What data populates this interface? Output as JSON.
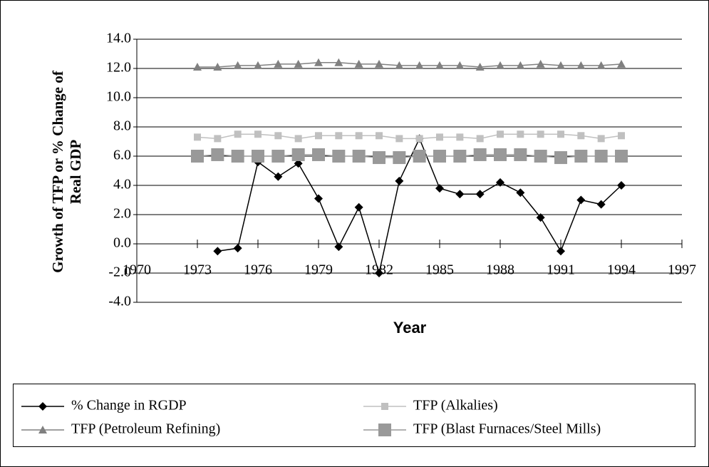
{
  "chart_data": {
    "type": "line",
    "x_label": "Year",
    "y_label": "Growth of TFP or % Change of Real GDP",
    "x": [
      1973,
      1974,
      1975,
      1976,
      1977,
      1978,
      1979,
      1980,
      1981,
      1982,
      1983,
      1984,
      1985,
      1986,
      1987,
      1988,
      1989,
      1990,
      1991,
      1992,
      1993,
      1994
    ],
    "series": [
      {
        "name": "% Change in RGDP",
        "color": "#000000",
        "marker": "diamond",
        "values": [
          null,
          -0.5,
          -0.3,
          5.6,
          4.6,
          5.5,
          3.1,
          -0.2,
          2.5,
          -2.0,
          4.3,
          7.2,
          3.8,
          3.4,
          3.4,
          4.2,
          3.5,
          1.8,
          -0.5,
          3.0,
          2.7,
          4.0
        ]
      },
      {
        "name": "TFP (Alkalies)",
        "color": "#c0c0c0",
        "marker": "square",
        "values": [
          7.3,
          7.2,
          7.5,
          7.5,
          7.4,
          7.2,
          7.4,
          7.4,
          7.4,
          7.4,
          7.2,
          7.2,
          7.3,
          7.3,
          7.2,
          7.5,
          7.5,
          7.5,
          7.5,
          7.4,
          7.2,
          7.4
        ]
      },
      {
        "name": "TFP (Petroleum Refining)",
        "color": "#808080",
        "marker": "triangle",
        "values": [
          12.1,
          12.1,
          12.2,
          12.2,
          12.3,
          12.3,
          12.4,
          12.4,
          12.3,
          12.3,
          12.2,
          12.2,
          12.2,
          12.2,
          12.1,
          12.2,
          12.2,
          12.3,
          12.2,
          12.2,
          12.2,
          12.3
        ]
      },
      {
        "name": "TFP (Blast Furnaces/Steel Mills)",
        "color": "#999999",
        "marker": "big-square",
        "values": [
          6.0,
          6.1,
          6.0,
          6.0,
          6.0,
          6.1,
          6.1,
          6.0,
          6.0,
          5.9,
          5.9,
          6.0,
          6.0,
          6.0,
          6.1,
          6.1,
          6.1,
          6.0,
          5.9,
          6.0,
          6.0,
          6.0
        ]
      }
    ],
    "xlim": [
      1970,
      1997
    ],
    "xticks": [
      1970,
      1973,
      1976,
      1979,
      1982,
      1985,
      1988,
      1991,
      1994,
      1997
    ],
    "ylim": [
      -4,
      14
    ],
    "yticks": [
      {
        "value": -4,
        "label": "-4.0"
      },
      {
        "value": -2,
        "label": "-2.0"
      },
      {
        "value": 0,
        "label": "0.0"
      },
      {
        "value": 2,
        "label": "2.0"
      },
      {
        "value": 4,
        "label": "4.0"
      },
      {
        "value": 6,
        "label": "6.0"
      },
      {
        "value": 8,
        "label": "8.0"
      },
      {
        "value": 10,
        "label": "10.0"
      },
      {
        "value": 12,
        "label": "12.0"
      },
      {
        "value": 14,
        "label": "14.0"
      }
    ],
    "grid": true,
    "legend": "bottom"
  }
}
